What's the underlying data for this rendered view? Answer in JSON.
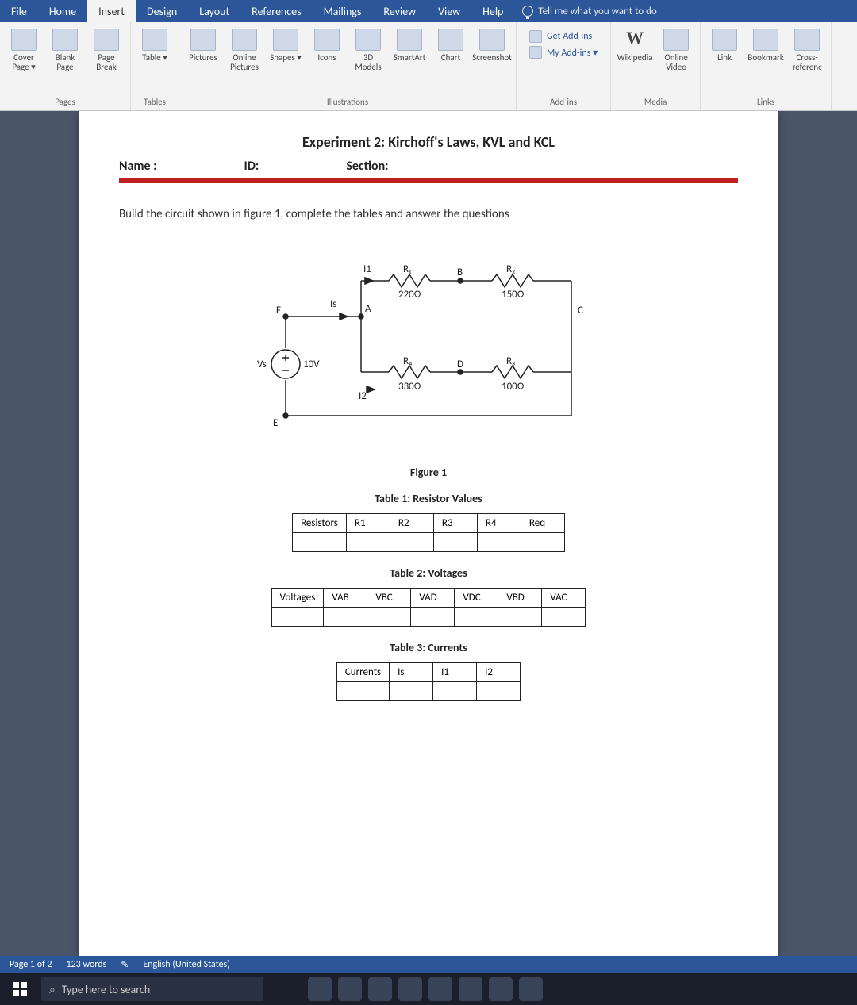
{
  "menu": {
    "tabs": [
      "File",
      "Home",
      "Insert",
      "Design",
      "Layout",
      "References",
      "Mailings",
      "Review",
      "View",
      "Help"
    ],
    "active_index": 2,
    "tell_me": "Tell me what you want to do"
  },
  "ribbon": {
    "groups": [
      {
        "label": "Pages",
        "buttons": [
          {
            "name": "cover-page",
            "label": "Cover Page ▾"
          },
          {
            "name": "blank-page",
            "label": "Blank Page"
          },
          {
            "name": "page-break",
            "label": "Page Break"
          }
        ]
      },
      {
        "label": "Tables",
        "buttons": [
          {
            "name": "table",
            "label": "Table ▾"
          }
        ]
      },
      {
        "label": "Illustrations",
        "buttons": [
          {
            "name": "pictures",
            "label": "Pictures"
          },
          {
            "name": "online-pictures",
            "label": "Online Pictures"
          },
          {
            "name": "shapes",
            "label": "Shapes ▾"
          },
          {
            "name": "icons",
            "label": "Icons"
          },
          {
            "name": "3d-models",
            "label": "3D Models"
          },
          {
            "name": "smartart",
            "label": "SmartArt"
          },
          {
            "name": "chart",
            "label": "Chart"
          },
          {
            "name": "screenshot",
            "label": "Screenshot"
          }
        ]
      },
      {
        "label": "Add-ins",
        "addins": {
          "get": "Get Add-ins",
          "my": "My Add-ins ▾"
        }
      },
      {
        "label": "Media",
        "buttons": [
          {
            "name": "wikipedia",
            "label": "Wikipedia"
          },
          {
            "name": "online-video",
            "label": "Online Video"
          }
        ]
      },
      {
        "label": "Links",
        "buttons": [
          {
            "name": "link",
            "label": "Link"
          },
          {
            "name": "bookmark",
            "label": "Bookmark"
          },
          {
            "name": "cross-ref",
            "label": "Cross-referenc"
          }
        ]
      }
    ],
    "wikipedia_W": "W"
  },
  "document": {
    "title": "Experiment 2: Kirchoff's Laws, KVL and KCL",
    "header": {
      "name": "Name :",
      "id": "ID:",
      "section": "Section:"
    },
    "instruction": "Build the circuit shown in figure 1, complete the tables and answer the questions",
    "circuit": {
      "nodes": {
        "F": "F",
        "A": "A",
        "B": "B",
        "C": "C",
        "D": "D",
        "E": "E"
      },
      "source": {
        "label": "Vs",
        "value": "10V"
      },
      "Is": "Is",
      "I1": "I1",
      "I2": "I2",
      "R1": {
        "name": "R₁",
        "value": "220Ω"
      },
      "R2": {
        "name": "R₂",
        "value": "150Ω"
      },
      "R3": {
        "name": "R₃",
        "value": "100Ω"
      },
      "R4": {
        "name": "R₄",
        "value": "330Ω"
      },
      "colors": {
        "wire": "#222",
        "text": "#222"
      }
    },
    "figure_caption": "Figure 1",
    "table1": {
      "caption": "Table 1: Resistor Values",
      "headers": [
        "Resistors",
        "R1",
        "R2",
        "R3",
        "R4",
        "Req"
      ]
    },
    "table2": {
      "caption": "Table 2: Voltages",
      "headers": [
        "Voltages",
        "VAB",
        "VBC",
        "VAD",
        "VDC",
        "VBD",
        "VAC"
      ]
    },
    "table3": {
      "caption": "Table 3: Currents",
      "headers": [
        "Currents",
        "Is",
        "I1",
        "I2"
      ]
    }
  },
  "statusbar": {
    "page": "Page 1 of 2",
    "words": "123 words",
    "lang": "English (United States)"
  },
  "taskbar": {
    "search_placeholder": "Type here to search"
  }
}
